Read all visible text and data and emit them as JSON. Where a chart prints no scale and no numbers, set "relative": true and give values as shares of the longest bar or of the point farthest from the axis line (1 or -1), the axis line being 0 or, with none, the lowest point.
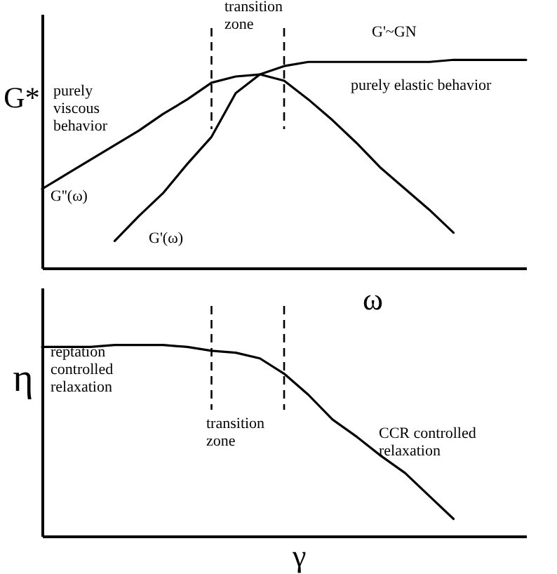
{
  "chart_data": [
    {
      "type": "line",
      "relative": true,
      "ylabel": "G*",
      "xlabel": "ω",
      "categories": [
        null,
        null,
        null,
        null,
        null,
        null,
        null,
        null,
        null,
        null,
        null,
        null,
        null,
        null,
        null,
        null,
        null,
        null,
        null,
        null,
        null
      ],
      "annotations": [
        "transition\nzone",
        "G'~GN",
        "purely elastic behavior",
        "purely\nviscous\nbehavior"
      ],
      "series": [
        {
          "name": "G''(ω)",
          "color": "#000000",
          "values": [
            0.38,
            0.45,
            0.52,
            0.59,
            0.66,
            0.74,
            0.81,
            0.89,
            0.92,
            0.93,
            0.9,
            0.81,
            0.71,
            0.6,
            0.48,
            0.38,
            0.28,
            0.17,
            null,
            null,
            null
          ]
        },
        {
          "name": "G'(ω)",
          "color": "#000000",
          "values": [
            null,
            null,
            null,
            0.13,
            0.25,
            0.36,
            0.5,
            0.63,
            0.84,
            0.93,
            0.97,
            0.99,
            0.99,
            0.99,
            0.99,
            0.99,
            0.99,
            1.0,
            1.0,
            1.0,
            1.0
          ]
        }
      ]
    },
    {
      "type": "line",
      "relative": true,
      "ylabel": "η",
      "xlabel": "γ",
      "categories": [
        null,
        null,
        null,
        null,
        null,
        null,
        null,
        null,
        null,
        null,
        null,
        null,
        null,
        null,
        null,
        null,
        null,
        null,
        null,
        null,
        null
      ],
      "annotations": [
        "reptation\ncontrolled\nrelaxation",
        "transition\nzone",
        "CCR controlled\nrelaxation"
      ],
      "series": [
        {
          "color": "#000000",
          "values": [
            0.99,
            0.99,
            0.99,
            1.0,
            1.0,
            1.0,
            0.99,
            0.97,
            0.96,
            0.93,
            0.85,
            0.74,
            0.61,
            0.52,
            0.42,
            0.33,
            0.21,
            0.09,
            null,
            null,
            null
          ]
        }
      ]
    }
  ]
}
